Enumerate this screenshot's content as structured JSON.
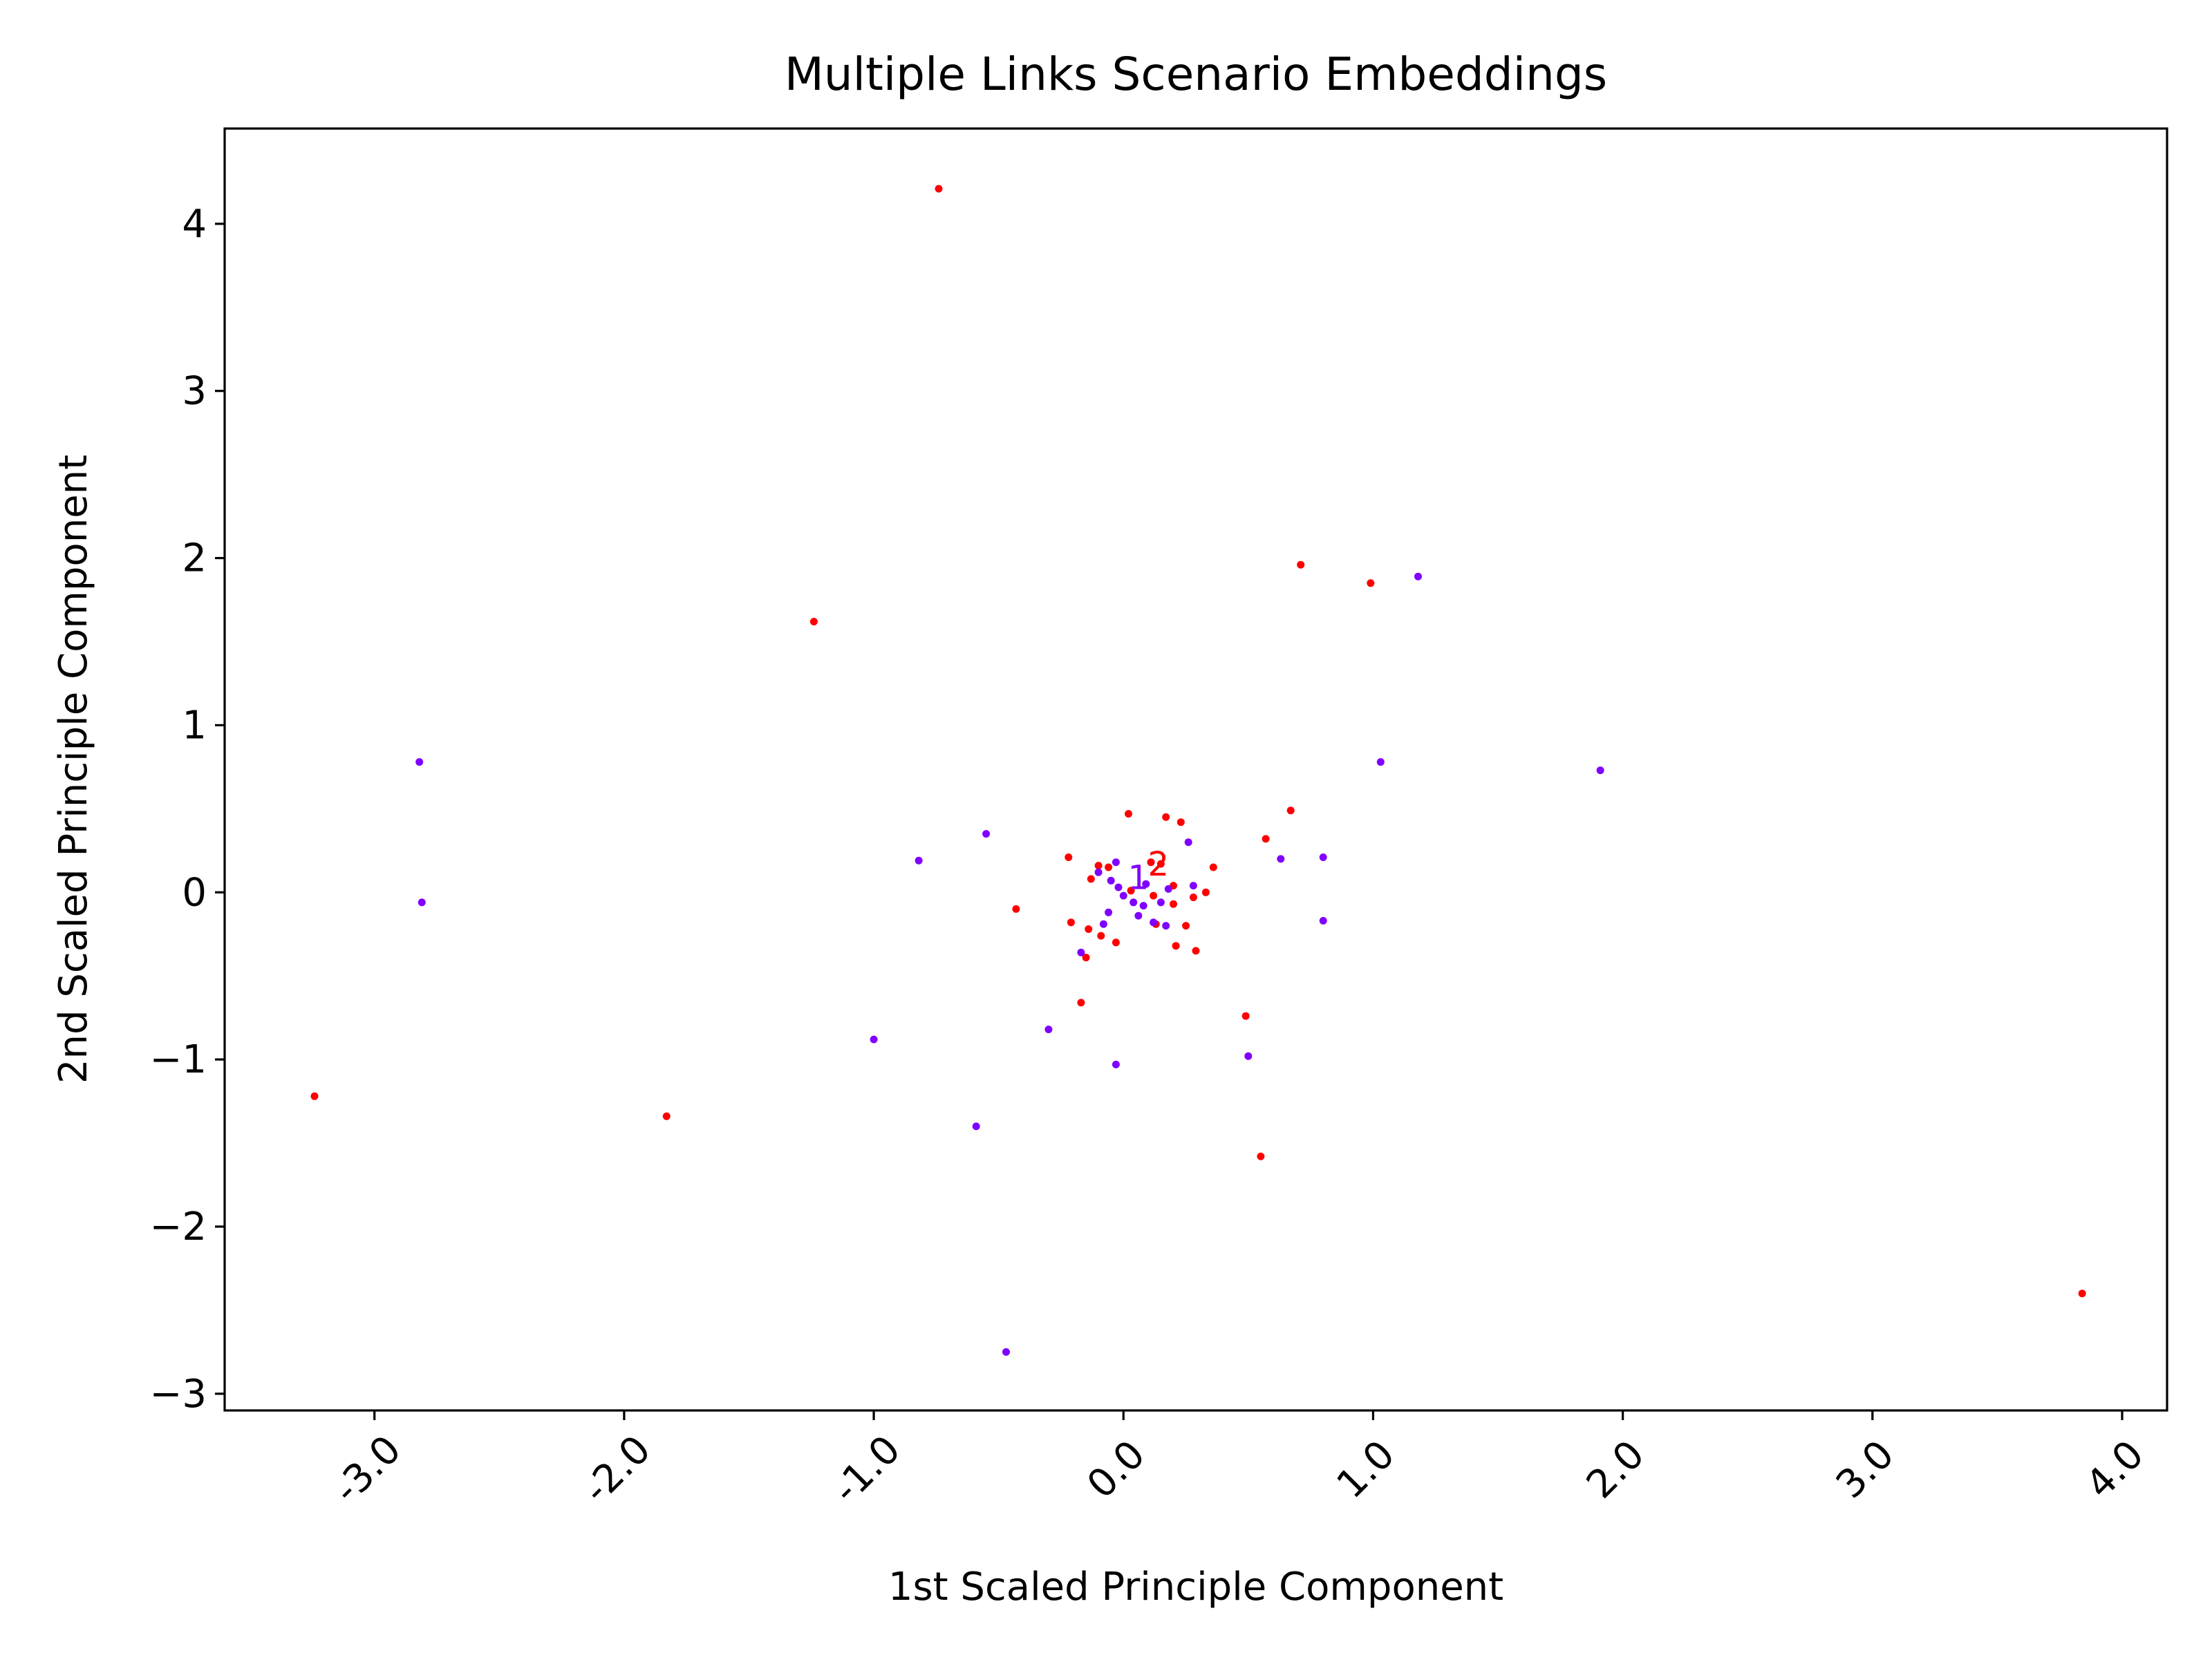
{
  "chart_data": {
    "type": "scatter",
    "title": "Multiple Links Scenario Embeddings",
    "xlabel": "1st Scaled Principle Component",
    "ylabel": "2nd Scaled Principle Component",
    "xlim": [
      -3.6,
      4.18
    ],
    "ylim": [
      -3.1,
      4.57
    ],
    "xticks": [
      -3,
      -2,
      -1,
      0,
      1,
      2,
      3,
      4
    ],
    "xtick_labels": [
      "-3.0",
      "-2.0",
      "-1.0",
      "0.0",
      "1.0",
      "2.0",
      "3.0",
      "4.0"
    ],
    "yticks": [
      -3,
      -2,
      -1,
      0,
      1,
      2,
      3,
      4
    ],
    "ytick_labels": [
      "−3",
      "−2",
      "−1",
      "0",
      "1",
      "2",
      "3",
      "4"
    ],
    "grid": false,
    "colors": {
      "red": "#ff0000",
      "purple": "#8000ff"
    },
    "annotations": [
      {
        "text": "2",
        "x": 0.14,
        "y": 0.1,
        "color": "#ff0000"
      },
      {
        "text": "1",
        "x": 0.06,
        "y": 0.02,
        "color": "#8000ff"
      }
    ],
    "series": [
      {
        "color": "#ff0000",
        "points": [
          [
            -0.74,
            4.21
          ],
          [
            -1.24,
            1.62
          ],
          [
            -3.24,
            -1.22
          ],
          [
            -1.83,
            -1.34
          ],
          [
            0.71,
            1.96
          ],
          [
            0.99,
            1.85
          ],
          [
            3.84,
            -2.4
          ],
          [
            0.55,
            -1.58
          ],
          [
            0.49,
            -0.74
          ],
          [
            0.67,
            0.49
          ],
          [
            0.57,
            0.32
          ],
          [
            0.02,
            0.47
          ],
          [
            0.17,
            0.45
          ],
          [
            0.23,
            0.42
          ],
          [
            0.36,
            0.15
          ],
          [
            -0.43,
            -0.1
          ],
          [
            -0.22,
            0.21
          ],
          [
            -0.1,
            0.16
          ],
          [
            -0.06,
            0.15
          ],
          [
            0.11,
            0.18
          ],
          [
            0.15,
            0.17
          ],
          [
            -0.13,
            0.08
          ],
          [
            0.2,
            0.04
          ],
          [
            0.33,
            0.0
          ],
          [
            0.28,
            -0.03
          ],
          [
            0.2,
            -0.07
          ],
          [
            -0.21,
            -0.18
          ],
          [
            -0.14,
            -0.22
          ],
          [
            -0.09,
            -0.26
          ],
          [
            -0.03,
            -0.3
          ],
          [
            0.25,
            -0.2
          ],
          [
            0.13,
            -0.19
          ],
          [
            0.21,
            -0.32
          ],
          [
            0.29,
            -0.35
          ],
          [
            -0.15,
            -0.39
          ],
          [
            -0.17,
            -0.66
          ],
          [
            0.12,
            -0.02
          ],
          [
            0.03,
            0.01
          ]
        ]
      },
      {
        "color": "#8000ff",
        "points": [
          [
            -2.82,
            0.78
          ],
          [
            -2.81,
            -0.06
          ],
          [
            -0.55,
            0.35
          ],
          [
            -0.82,
            0.19
          ],
          [
            -1.0,
            -0.88
          ],
          [
            -0.59,
            -1.4
          ],
          [
            -0.47,
            -2.75
          ],
          [
            -0.3,
            -0.82
          ],
          [
            -0.03,
            -1.03
          ],
          [
            0.5,
            -0.98
          ],
          [
            1.18,
            1.89
          ],
          [
            1.03,
            0.78
          ],
          [
            1.91,
            0.73
          ],
          [
            0.8,
            0.21
          ],
          [
            0.63,
            0.2
          ],
          [
            0.8,
            -0.17
          ],
          [
            0.26,
            0.3
          ],
          [
            0.28,
            0.04
          ],
          [
            -0.17,
            -0.36
          ],
          [
            -0.05,
            0.07
          ],
          [
            -0.02,
            0.03
          ],
          [
            0.0,
            -0.02
          ],
          [
            0.04,
            -0.06
          ],
          [
            0.08,
            -0.08
          ],
          [
            0.06,
            -0.14
          ],
          [
            0.12,
            -0.18
          ],
          [
            0.17,
            -0.2
          ],
          [
            -0.08,
            -0.19
          ],
          [
            -0.06,
            -0.12
          ],
          [
            0.09,
            0.05
          ],
          [
            0.15,
            -0.06
          ],
          [
            0.18,
            0.02
          ],
          [
            -0.1,
            0.12
          ],
          [
            -0.03,
            0.18
          ]
        ]
      }
    ]
  }
}
